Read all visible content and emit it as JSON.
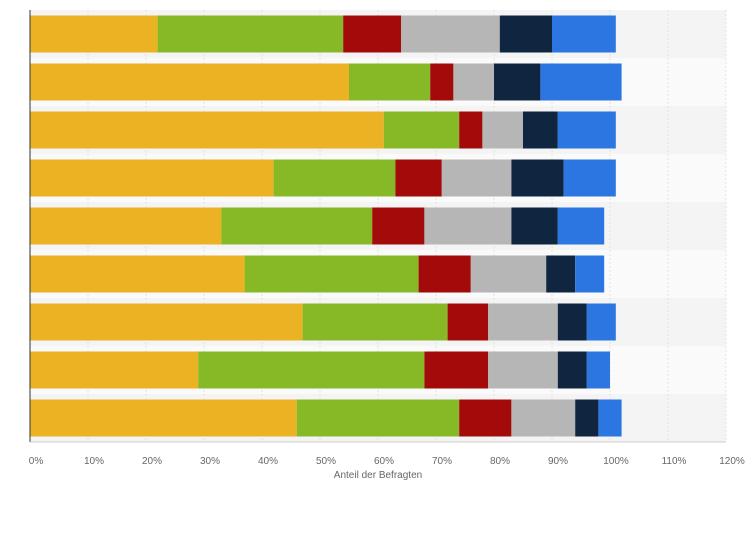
{
  "chart_data": {
    "type": "bar",
    "orientation": "horizontal",
    "stacked": true,
    "xlabel": "Anteil der Befragten",
    "xlim": [
      0,
      120
    ],
    "xticks": [
      "0%",
      "10%",
      "20%",
      "30%",
      "40%",
      "50%",
      "60%",
      "70%",
      "80%",
      "90%",
      "100%",
      "110%",
      "120%"
    ],
    "xtick_values": [
      0,
      10,
      20,
      30,
      40,
      50,
      60,
      70,
      80,
      90,
      100,
      110,
      120
    ],
    "grid": true,
    "legend": "none",
    "series_colors": [
      "#ebb224",
      "#87b926",
      "#a30b0b",
      "#b6b6b6",
      "#10253f",
      "#2b76e0"
    ],
    "series": [
      {
        "values": [
          22,
          55,
          61,
          42,
          33,
          37,
          47,
          29,
          46
        ]
      },
      {
        "values": [
          32,
          14,
          13,
          21,
          26,
          30,
          25,
          39,
          28
        ]
      },
      {
        "values": [
          10,
          4,
          4,
          8,
          9,
          9,
          7,
          11,
          9
        ]
      },
      {
        "values": [
          17,
          7,
          7,
          12,
          15,
          13,
          12,
          12,
          11
        ]
      },
      {
        "values": [
          9,
          8,
          6,
          9,
          8,
          5,
          5,
          5,
          4
        ]
      },
      {
        "values": [
          11,
          14,
          10,
          9,
          8,
          5,
          5,
          4,
          4
        ]
      }
    ]
  }
}
